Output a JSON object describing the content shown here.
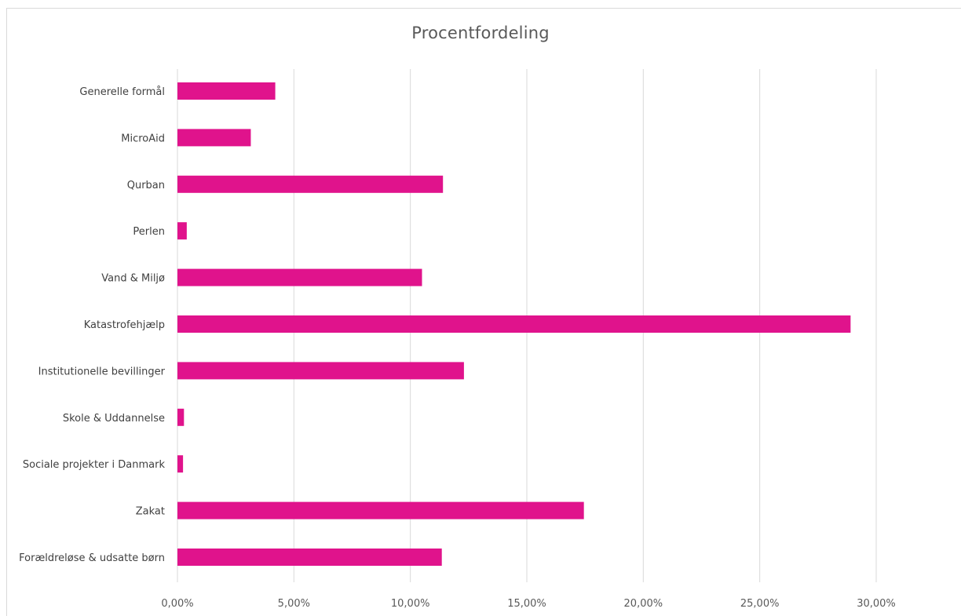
{
  "chart_data": {
    "type": "bar",
    "orientation": "horizontal",
    "title": "Procentfordeling",
    "xlabel": "",
    "ylabel": "",
    "categories": [
      "Generelle formål",
      "MicroAid",
      "Qurban",
      "Perlen",
      "Vand & Miljø",
      "Katastrofehjælp",
      "Institutionelle bevillinger",
      "Skole & Uddannelse",
      "Sociale projekter i Danmark",
      "Zakat",
      "Forældreløse & udsatte børn"
    ],
    "values": [
      4.2,
      3.15,
      11.4,
      0.4,
      10.5,
      28.9,
      12.3,
      0.28,
      0.24,
      17.45,
      11.35
    ],
    "xlim": [
      0,
      30
    ],
    "xticks": [
      0,
      5,
      10,
      15,
      20,
      25,
      30
    ],
    "xtick_labels": [
      "0,00%",
      "5,00%",
      "10,00%",
      "15,00%",
      "20,00%",
      "25,00%",
      "30,00%"
    ],
    "grid": "vertical",
    "legend": "none",
    "bar_color": "#e0138c",
    "grid_color": "#d9d9d9"
  }
}
